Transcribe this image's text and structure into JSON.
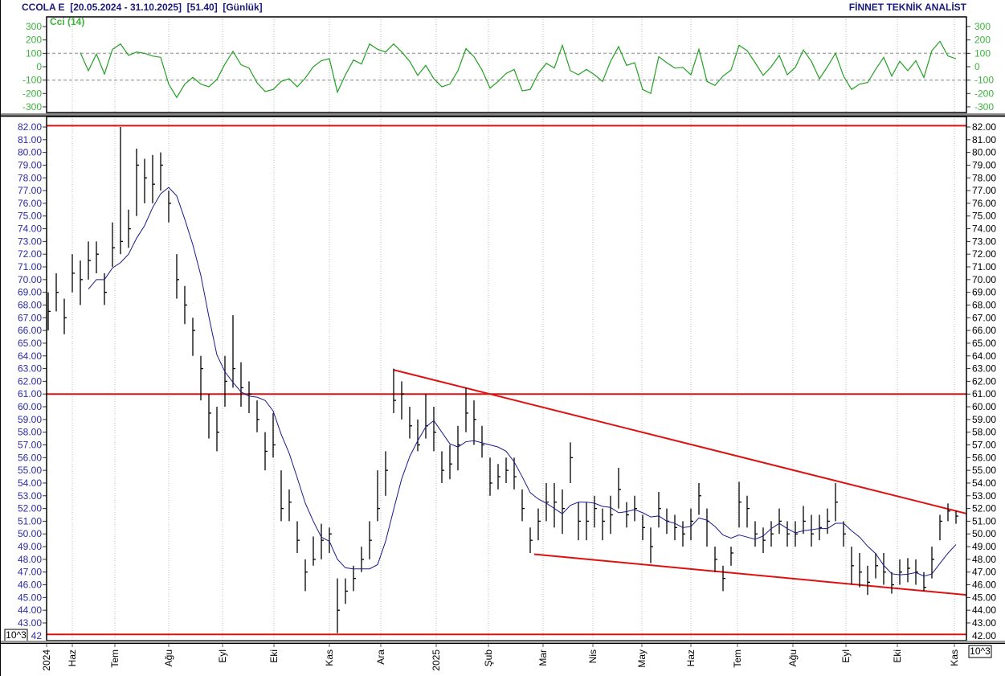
{
  "header": {
    "title": "CCOLA E  [20.05.2024 - 31.10.2025]  [51.40]  [Günlük]",
    "brand": "FİNNET TEKNİK ANALİST"
  },
  "colors": {
    "price_bar": "#000000",
    "moving_average": "#1a1a8c",
    "cci_line": "#22a022",
    "levels": "#e01010",
    "trendlines": "#e01010",
    "left_axis_text": "#2a2aa8",
    "cci_axis_text": "#3cb43c"
  },
  "scale_badge": "10^3",
  "chart_data": [
    {
      "type": "line",
      "title": "Cci (14)",
      "ylim": [
        -350,
        350
      ],
      "ticks": [
        300,
        200,
        100,
        0,
        -100,
        -200,
        -300
      ],
      "reference_lines": [
        100,
        -100
      ],
      "values": [
        null,
        null,
        null,
        null,
        105,
        -30,
        95,
        -55,
        130,
        170,
        85,
        110,
        100,
        80,
        70,
        -130,
        -230,
        -130,
        -80,
        -130,
        -150,
        -95,
        20,
        115,
        15,
        -10,
        -120,
        -185,
        -170,
        -110,
        -90,
        -150,
        -85,
        0,
        45,
        60,
        -190,
        -60,
        50,
        20,
        170,
        130,
        110,
        170,
        110,
        40,
        -65,
        10,
        -90,
        -150,
        -130,
        -30,
        135,
        75,
        -25,
        -160,
        -110,
        -50,
        -20,
        -180,
        -170,
        -50,
        25,
        -10,
        160,
        -30,
        -60,
        -20,
        -60,
        -110,
        40,
        150,
        10,
        30,
        -170,
        -200,
        75,
        30,
        -10,
        -5,
        -60,
        130,
        -110,
        -140,
        -70,
        -25,
        160,
        120,
        30,
        -65,
        0,
        85,
        -60,
        -5,
        125,
        40,
        -90,
        0,
        100,
        -70,
        -170,
        -130,
        -118,
        -20,
        70,
        -70,
        40,
        -30,
        45,
        -80,
        120,
        190,
        80,
        60
      ]
    },
    {
      "type": "ohlc",
      "ylim": [
        42,
        82.5
      ],
      "ticks": [
        82,
        81,
        80,
        79,
        78,
        77,
        76,
        75,
        74,
        73,
        72,
        71,
        70,
        69,
        68,
        67,
        66,
        65,
        64,
        63,
        62,
        61,
        60,
        59,
        58,
        57,
        56,
        55,
        54,
        53,
        52,
        51,
        50,
        49,
        48,
        47,
        46,
        45,
        44,
        43
      ],
      "x_tick_labels": [
        "2024",
        "Haz",
        "Tem",
        "Ağu",
        "Eyl",
        "Eki",
        "Kas",
        "Ara",
        "2025",
        "Şub",
        "Mar",
        "Nis",
        "May",
        "Haz",
        "Tem",
        "Ağu",
        "Eyl",
        "Eki",
        "Kas"
      ],
      "bars_hlc": [
        [
          69,
          66,
          67.5
        ],
        [
          70.5,
          67.5,
          69
        ],
        [
          68.5,
          65.7,
          67
        ],
        [
          72,
          69,
          70.5
        ],
        [
          71.5,
          68,
          70
        ],
        [
          73,
          70,
          71.5
        ],
        [
          73,
          70.5,
          72
        ],
        [
          70.5,
          68,
          69
        ],
        [
          74.5,
          71,
          72.5
        ],
        [
          82,
          72,
          73
        ],
        [
          75.5,
          72.5,
          74
        ],
        [
          80.3,
          75,
          79
        ],
        [
          79.5,
          76,
          78
        ],
        [
          79.8,
          76,
          77.5
        ],
        [
          80,
          77,
          79
        ],
        [
          77,
          74.5,
          76
        ],
        [
          72,
          68.5,
          70
        ],
        [
          69.5,
          66.5,
          68
        ],
        [
          67,
          64,
          66
        ],
        [
          64,
          60.5,
          63
        ],
        [
          61,
          57.5,
          59.5
        ],
        [
          60,
          56.5,
          58
        ],
        [
          64,
          60,
          62
        ],
        [
          67.2,
          61.5,
          63
        ],
        [
          63.5,
          60,
          61.5
        ],
        [
          62,
          59.5,
          61
        ],
        [
          60.5,
          58,
          59
        ],
        [
          58,
          55,
          56.5
        ],
        [
          59.5,
          56,
          57
        ],
        [
          55,
          51,
          52
        ],
        [
          53.5,
          51,
          52.5
        ],
        [
          51,
          48.5,
          49.5
        ],
        [
          48,
          45.5,
          47
        ],
        [
          49.8,
          47.5,
          48
        ],
        [
          50.8,
          48,
          49.5
        ],
        [
          50.5,
          48.5,
          50
        ],
        [
          46.5,
          42.2,
          44
        ],
        [
          46.5,
          44.5,
          45.5
        ],
        [
          47.5,
          45.5,
          46.5
        ],
        [
          49,
          47,
          48
        ],
        [
          51,
          48,
          49.5
        ],
        [
          55,
          51,
          52
        ],
        [
          56.5,
          53,
          55
        ],
        [
          63,
          59.5,
          60.5
        ],
        [
          62,
          59,
          61
        ],
        [
          60,
          57.5,
          58.5
        ],
        [
          59,
          56.5,
          57
        ],
        [
          61,
          57.5,
          58.5
        ],
        [
          60,
          56.5,
          58
        ],
        [
          56.5,
          54,
          55
        ],
        [
          57,
          54.3,
          55.5
        ],
        [
          58.5,
          55,
          57
        ],
        [
          61.5,
          58,
          59.5
        ],
        [
          60.5,
          57,
          59
        ],
        [
          58.5,
          56,
          57
        ],
        [
          56,
          53,
          54
        ],
        [
          55.5,
          53.5,
          54.5
        ],
        [
          56,
          54,
          55
        ],
        [
          56,
          53.5,
          54.5
        ],
        [
          53.5,
          51,
          52
        ],
        [
          50.5,
          48.5,
          49.5
        ],
        [
          52,
          49.5,
          51
        ],
        [
          54,
          51,
          52.5
        ],
        [
          54,
          50.5,
          52.5
        ],
        [
          53.5,
          50,
          52
        ],
        [
          57.2,
          54,
          56
        ],
        [
          52.5,
          49.5,
          51
        ],
        [
          52.5,
          49.5,
          51
        ],
        [
          53,
          50.5,
          52
        ],
        [
          52,
          49.5,
          51
        ],
        [
          53,
          50,
          51.5
        ],
        [
          55.2,
          52,
          53.5
        ],
        [
          52.5,
          50.5,
          51.5
        ],
        [
          53,
          51,
          52
        ],
        [
          51.5,
          49.5,
          50.5
        ],
        [
          50.5,
          47.7,
          49
        ],
        [
          53.3,
          50.5,
          52
        ],
        [
          52,
          50,
          51
        ],
        [
          51.5,
          49.5,
          50.5
        ],
        [
          51,
          49,
          50
        ],
        [
          52,
          49.5,
          51
        ],
        [
          54,
          51.5,
          53
        ],
        [
          52,
          49,
          51
        ],
        [
          49,
          47,
          48
        ],
        [
          47.5,
          45.5,
          46.5
        ],
        [
          49,
          47.5,
          48.5
        ],
        [
          54.1,
          50.5,
          52.5
        ],
        [
          53,
          50.5,
          52
        ],
        [
          51,
          49,
          50
        ],
        [
          50.5,
          48.5,
          49.5
        ],
        [
          51,
          49,
          50
        ],
        [
          52,
          50,
          51
        ],
        [
          51,
          49,
          50
        ],
        [
          51,
          49,
          50
        ],
        [
          52.2,
          50,
          51
        ],
        [
          51.5,
          49,
          50
        ],
        [
          51.5,
          49.5,
          50.5
        ],
        [
          52,
          50,
          51
        ],
        [
          54,
          51,
          52.5
        ],
        [
          51,
          49,
          50
        ],
        [
          49,
          46,
          47.5
        ],
        [
          48.5,
          45.8,
          47
        ],
        [
          47.5,
          45.2,
          46.2
        ],
        [
          48.5,
          46.5,
          47.5
        ],
        [
          48.5,
          46,
          47
        ],
        [
          47,
          45.3,
          46
        ],
        [
          48,
          46,
          47
        ],
        [
          48.1,
          46.2,
          47.3
        ],
        [
          48,
          46,
          47
        ],
        [
          47,
          45.5,
          45.8
        ],
        [
          49,
          46.5,
          48
        ],
        [
          51.5,
          49.5,
          51
        ],
        [
          52.4,
          51,
          51.8
        ],
        [
          51.8,
          50.8,
          51.4
        ]
      ],
      "horizontal_levels": [
        82.1,
        61.0,
        42.1
      ],
      "trendlines": [
        {
          "name": "resistance",
          "from_price": 62.9,
          "to_price": 51.6
        },
        {
          "name": "support",
          "from_price": 48.4,
          "to_price": 45.2
        }
      ]
    }
  ]
}
